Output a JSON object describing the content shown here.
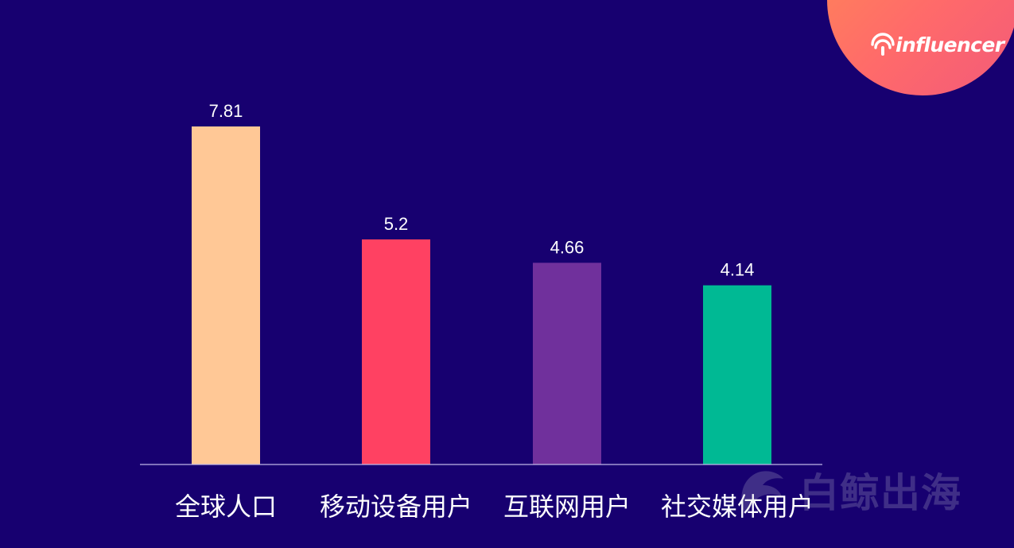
{
  "brand": {
    "logo_text": "influencer",
    "logo_icon": "signal-waves-icon",
    "logo_bg_color": "#ff7162"
  },
  "watermark": {
    "text": "白鲸出海",
    "icon": "whale-tail-icon"
  },
  "colors": {
    "background": "#170070",
    "axis": "#bfb8e6",
    "label": "#ffffff"
  },
  "chart_data": {
    "type": "bar",
    "categories": [
      "全球人口",
      "移动设备用户",
      "互联网用户",
      "社交媒体用户"
    ],
    "values": [
      7.81,
      5.2,
      4.66,
      4.14
    ],
    "value_labels": [
      "7.81",
      "5.2",
      "4.66",
      "4.14"
    ],
    "colors": [
      "#ffc896",
      "#ff4162",
      "#70309c",
      "#00b994"
    ],
    "title": "",
    "xlabel": "",
    "ylabel": "",
    "ylim": [
      0,
      8.0
    ],
    "grid": false,
    "legend": "none"
  }
}
